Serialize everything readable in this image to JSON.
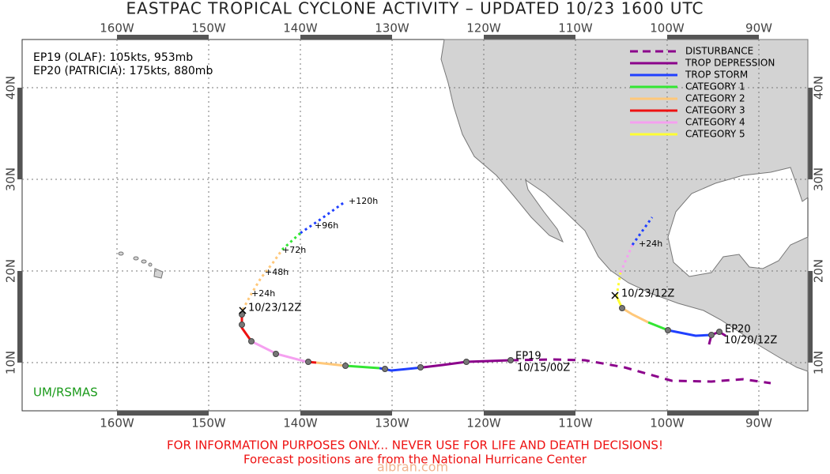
{
  "title": "EASTPAC TROPICAL CYCLONE ACTIVITY – UPDATED 10/23 1600 UTC",
  "longitude_labels": [
    "160W",
    "150W",
    "140W",
    "130W",
    "120W",
    "110W",
    "100W",
    "90W"
  ],
  "latitude_labels": [
    "40N",
    "30N",
    "20N",
    "10N"
  ],
  "storms": [
    "EP19 (OLAF): 105kts, 953mb",
    "EP20 (PATRICIA): 175kts, 880mb"
  ],
  "legend": [
    {
      "label": "DISTURBANCE",
      "color": "#8b008b"
    },
    {
      "label": "TROP DEPRESSION",
      "color": "#8b008b"
    },
    {
      "label": "TROP STORM",
      "color": "#2040ff"
    },
    {
      "label": "CATEGORY 1",
      "color": "#33e633"
    },
    {
      "label": "CATEGORY 2",
      "color": "#ffc87a"
    },
    {
      "label": "CATEGORY 3",
      "color": "#ee1111"
    },
    {
      "label": "CATEGORY 4",
      "color": "#f5a0f0"
    },
    {
      "label": "CATEGORY 5",
      "color": "#ffff33"
    }
  ],
  "track_labels": [
    "+120h",
    "+96h",
    "+72h",
    "+48h",
    "+24h",
    "10/23/12Z",
    "EP19",
    "10/15/00Z",
    "+24h",
    "10/23/12Z",
    "EP20",
    "10/20/12Z"
  ],
  "credit": "UM/RSMAS",
  "disclaimer": "FOR INFORMATION PURPOSES ONLY... NEVER USE FOR LIFE AND DEATH DECISIONS!",
  "note": "Forecast positions are from the National Hurricane Center",
  "watermark": "albran.com"
}
